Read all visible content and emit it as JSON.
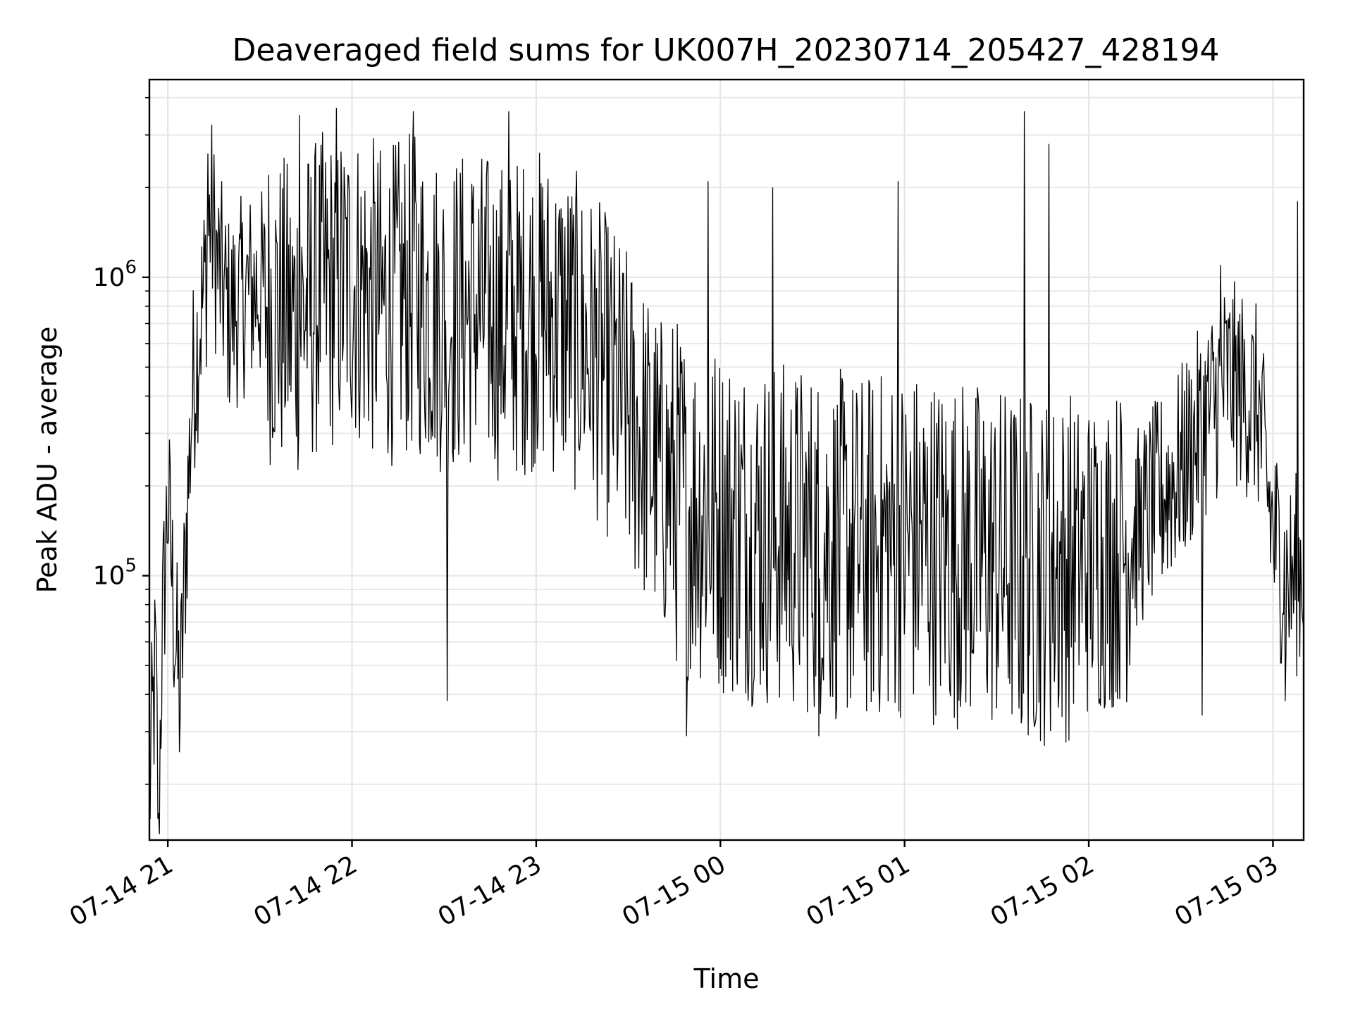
{
  "chart_data": {
    "type": "line",
    "title": "Deaveraged field sums for UK007H_20230714_205427_428194",
    "xlabel": "Time",
    "ylabel": "Peak ADU - average",
    "yscale": "log",
    "ylim": [
      13000,
      4600000
    ],
    "xlim": [
      "2023-07-14 20:54:00",
      "2023-07-15 03:10:00"
    ],
    "x_ticks": [
      "07-14 21",
      "07-14 22",
      "07-14 23",
      "07-15 00",
      "07-15 01",
      "07-15 02",
      "07-15 03"
    ],
    "y_ticks": [
      {
        "base": "10",
        "exp": "5",
        "value": 100000
      },
      {
        "base": "10",
        "exp": "6",
        "value": 1000000
      }
    ],
    "grid": true,
    "line_color": "#000000",
    "series": [
      {
        "points": [
          [
            "2023-07-14 20:54:00",
            20000
          ],
          [
            "2023-07-14 20:56:00",
            55000
          ],
          [
            "2023-07-14 20:57:00",
            16000
          ],
          [
            "2023-07-14 20:58:00",
            60000
          ],
          [
            "2023-07-14 21:00:00",
            200000
          ],
          [
            "2023-07-14 21:02:00",
            80000
          ],
          [
            "2023-07-14 21:04:00",
            40000
          ],
          [
            "2023-07-14 21:06:00",
            150000
          ],
          [
            "2023-07-14 21:08:00",
            450000
          ],
          [
            "2023-07-14 21:10:00",
            700000
          ],
          [
            "2023-07-14 21:12:00",
            1000000
          ],
          [
            "2023-07-14 21:14:00",
            1800000
          ],
          [
            "2023-07-14 21:16:00",
            1200000
          ],
          [
            "2023-07-14 21:20:00",
            800000
          ],
          [
            "2023-07-14 21:25:00",
            950000
          ],
          [
            "2023-07-14 21:30:00",
            1000000
          ],
          [
            "2023-07-14 21:40:00",
            800000
          ],
          [
            "2023-07-14 21:50:00",
            1000000
          ],
          [
            "2023-07-14 22:00:00",
            1100000
          ],
          [
            "2023-07-14 22:10:00",
            900000
          ],
          [
            "2023-07-14 22:20:00",
            1000000
          ],
          [
            "2023-07-14 22:30:00",
            850000
          ],
          [
            "2023-07-14 22:40:00",
            900000
          ],
          [
            "2023-07-14 22:50:00",
            800000
          ],
          [
            "2023-07-14 23:00:00",
            900000
          ],
          [
            "2023-07-14 23:10:00",
            800000
          ],
          [
            "2023-07-14 23:20:00",
            600000
          ],
          [
            "2023-07-14 23:30:00",
            400000
          ],
          [
            "2023-07-14 23:40:00",
            250000
          ],
          [
            "2023-07-14 23:50:00",
            200000
          ],
          [
            "2023-07-15 00:00:00",
            180000
          ],
          [
            "2023-07-15 00:15:00",
            160000
          ],
          [
            "2023-07-15 00:30:00",
            150000
          ],
          [
            "2023-07-15 00:45:00",
            140000
          ],
          [
            "2023-07-15 01:00:00",
            150000
          ],
          [
            "2023-07-15 01:15:00",
            140000
          ],
          [
            "2023-07-15 01:30:00",
            130000
          ],
          [
            "2023-07-15 01:45:00",
            120000
          ],
          [
            "2023-07-15 02:00:00",
            130000
          ],
          [
            "2023-07-15 02:15:00",
            150000
          ],
          [
            "2023-07-15 02:30:00",
            250000
          ],
          [
            "2023-07-15 02:45:00",
            500000
          ],
          [
            "2023-07-15 02:55:00",
            400000
          ],
          [
            "2023-07-15 03:00:00",
            150000
          ],
          [
            "2023-07-15 03:05:00",
            100000
          ],
          [
            "2023-07-15 03:10:00",
            120000
          ]
        ],
        "extremes": [
          [
            "2023-07-14 20:57:00",
            16000
          ],
          [
            "2023-07-14 21:13:00",
            2600000
          ],
          [
            "2023-07-14 21:43:00",
            3500000
          ],
          [
            "2023-07-14 21:55:00",
            3700000
          ],
          [
            "2023-07-14 22:20:00",
            3600000
          ],
          [
            "2023-07-14 22:51:00",
            3600000
          ],
          [
            "2023-07-14 22:31:00",
            38000
          ],
          [
            "2023-07-14 23:49:00",
            29000
          ],
          [
            "2023-07-14 23:56:00",
            2100000
          ],
          [
            "2023-07-15 00:17:00",
            2000000
          ],
          [
            "2023-07-15 00:32:00",
            29000
          ],
          [
            "2023-07-15 00:58:00",
            2100000
          ],
          [
            "2023-07-15 01:39:00",
            3600000
          ],
          [
            "2023-07-15 01:38:00",
            32000
          ],
          [
            "2023-07-15 01:47:00",
            2800000
          ],
          [
            "2023-07-15 02:37:00",
            34000
          ],
          [
            "2023-07-15 02:43:00",
            1100000
          ],
          [
            "2023-07-15 03:08:00",
            1800000
          ],
          [
            "2023-07-15 03:04:00",
            38000
          ]
        ]
      }
    ]
  }
}
